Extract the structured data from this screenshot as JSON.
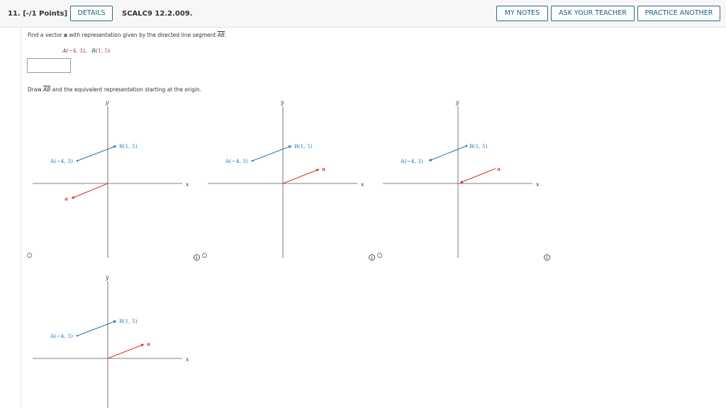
{
  "header": {
    "question_number": "11.",
    "points": "[-/1 Points]",
    "details_button": "DETAILS",
    "problem_code": "SCALC9 12.2.009.",
    "my_notes_button": "MY NOTES",
    "ask_teacher_button": "ASK YOUR TEACHER",
    "practice_button": "PRACTICE ANOTHER"
  },
  "question": {
    "prompt_prefix": "Find a vector ",
    "vector_name": "a",
    "prompt_middle": " with representation given by the directed line segment ",
    "segment_label": "AB",
    "prompt_suffix": ".",
    "point_a_prefix": "A(",
    "point_a_coords": "−4, 3",
    "point_a_suffix": "),",
    "point_b_prefix": "B(",
    "point_b_coords": "1, 5",
    "point_b_suffix": ")",
    "answer_value": "",
    "draw_prefix": "Draw ",
    "draw_suffix": " and the equivalent representation starting at the origin."
  },
  "graph_labels": {
    "x_axis": "x",
    "y_axis": "y",
    "point_a": "A(−4, 3)",
    "point_b": "B(1, 5)",
    "vector_a": "a"
  },
  "options": [
    {
      "id": "option-1",
      "selected": false,
      "red_vector_points_to": "lower-left"
    },
    {
      "id": "option-2",
      "selected": false,
      "red_vector_points_to": "upper-right"
    },
    {
      "id": "option-3",
      "selected": false,
      "red_vector_points_to": "origin"
    },
    {
      "id": "option-4",
      "selected": false,
      "red_vector_points_to": "upper-right"
    }
  ],
  "info_icon_glyph": "i",
  "colors": {
    "segment_blue": "#2b7bb9",
    "vector_red": "#d9382b",
    "button_border": "#2a6a8a"
  }
}
